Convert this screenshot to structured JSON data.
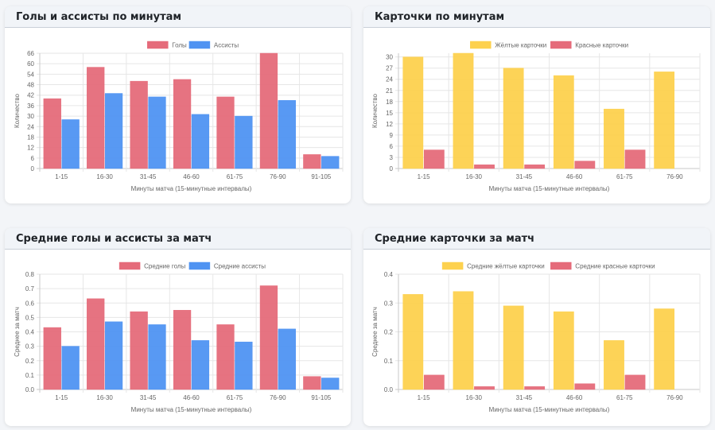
{
  "colors": {
    "goals": "#e56b7a",
    "assists": "#4f93f2",
    "yellow": "#fdd14e",
    "red": "#e56b7a",
    "grid": "#e6e6e6",
    "axis": "#c8c8c8"
  },
  "chart_data": [
    {
      "id": "goals-assists",
      "type": "bar",
      "title": "Голы и ассисты по минутам",
      "xlabel": "Минуты матча (15-минутные интервалы)",
      "ylabel": "Количество",
      "categories": [
        "1-15",
        "16-30",
        "31-45",
        "46-60",
        "61-75",
        "76-90",
        "91-105"
      ],
      "series": [
        {
          "name": "Голы",
          "color_key": "goals",
          "values": [
            40,
            58,
            50,
            51,
            41,
            66,
            8
          ]
        },
        {
          "name": "Ассисты",
          "color_key": "assists",
          "values": [
            28,
            43,
            41,
            31,
            30,
            39,
            7
          ]
        }
      ],
      "ylim": [
        0,
        66
      ],
      "yticks": [
        "0",
        "6",
        "12",
        "18",
        "24",
        "30",
        "36",
        "42",
        "48",
        "54",
        "60",
        "66"
      ],
      "grid": true,
      "legend": "top-center"
    },
    {
      "id": "cards",
      "type": "bar",
      "title": "Карточки по минутам",
      "xlabel": "Минуты матча (15-минутные интервалы)",
      "ylabel": "Количество",
      "categories": [
        "1-15",
        "16-30",
        "31-45",
        "46-60",
        "61-75",
        "76-90"
      ],
      "series": [
        {
          "name": "Жёлтые карточки",
          "color_key": "yellow",
          "values": [
            30,
            31,
            27,
            25,
            16,
            26
          ]
        },
        {
          "name": "Красные карточки",
          "color_key": "red",
          "values": [
            5,
            1,
            1,
            2,
            5,
            0
          ]
        }
      ],
      "ylim": [
        0,
        31
      ],
      "yticks": [
        "0",
        "3",
        "6",
        "9",
        "12",
        "15",
        "18",
        "21",
        "24",
        "27",
        "30"
      ],
      "ytick_max_value": 30,
      "grid": true,
      "legend": "top-center"
    },
    {
      "id": "avg-goals-assists",
      "type": "bar",
      "title": "Средние голы и ассисты за матч",
      "xlabel": "Минуты матча (15-минутные интервалы)",
      "ylabel": "Среднее за матч",
      "categories": [
        "1-15",
        "16-30",
        "31-45",
        "46-60",
        "61-75",
        "76-90",
        "91-105"
      ],
      "series": [
        {
          "name": "Средние голы",
          "color_key": "goals",
          "values": [
            0.43,
            0.63,
            0.54,
            0.55,
            0.45,
            0.72,
            0.09
          ]
        },
        {
          "name": "Средние ассисты",
          "color_key": "assists",
          "values": [
            0.3,
            0.47,
            0.45,
            0.34,
            0.33,
            0.42,
            0.08
          ]
        }
      ],
      "ylim": [
        0,
        0.8
      ],
      "yticks": [
        "0.0",
        "0.1",
        "0.2",
        "0.3",
        "0.4",
        "0.5",
        "0.6",
        "0.7",
        "0.8"
      ],
      "grid": true,
      "legend": "top-center"
    },
    {
      "id": "avg-cards",
      "type": "bar",
      "title": "Средние карточки за матч",
      "xlabel": "Минуты матча (15-минутные интервалы)",
      "ylabel": "Среднее за матч",
      "categories": [
        "1-15",
        "16-30",
        "31-45",
        "46-60",
        "61-75",
        "76-90"
      ],
      "series": [
        {
          "name": "Средние жёлтые карточки",
          "color_key": "yellow",
          "values": [
            0.33,
            0.34,
            0.29,
            0.27,
            0.17,
            0.28
          ]
        },
        {
          "name": "Средние красные карточки",
          "color_key": "red",
          "values": [
            0.05,
            0.01,
            0.01,
            0.02,
            0.05,
            0.0
          ]
        }
      ],
      "ylim": [
        0,
        0.4
      ],
      "yticks": [
        "0.0",
        "0.1",
        "0.2",
        "0.3",
        "0.4"
      ],
      "grid": true,
      "legend": "top-center"
    }
  ]
}
